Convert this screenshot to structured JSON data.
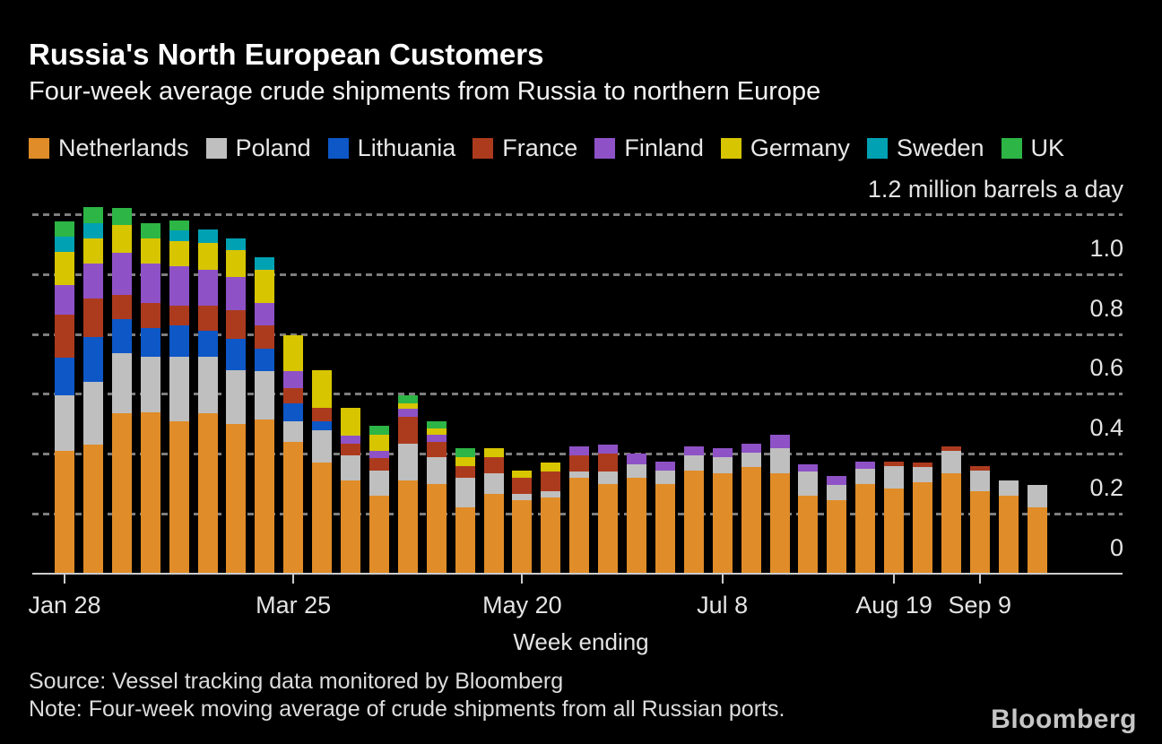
{
  "header": {
    "title": "Russia's North European Customers",
    "subtitle": "Four-week average crude shipments from Russia to northern Europe"
  },
  "axis": {
    "unit_label": "1.2 million barrels a day",
    "x_axis_title": "Week ending"
  },
  "chart_data": {
    "type": "bar",
    "stacked": true,
    "title": "Russia's North European Customers",
    "subtitle": "Four-week average crude shipments from Russia to northern Europe",
    "unit": "million barrels a day",
    "ylim": [
      0,
      1.2
    ],
    "grid_values": [
      1.2,
      1.0,
      0.8,
      0.6,
      0.4,
      0.2
    ],
    "y_ticks": [
      {
        "value": 1.0,
        "label": "1.0"
      },
      {
        "value": 0.8,
        "label": "0.8"
      },
      {
        "value": 0.6,
        "label": "0.6"
      },
      {
        "value": 0.4,
        "label": "0.4"
      },
      {
        "value": 0.2,
        "label": "0.2"
      },
      {
        "value": 0.0,
        "label": "0"
      }
    ],
    "n_bars": 35,
    "x_interval": "weekly",
    "x_ticks": [
      {
        "index": 0,
        "label": "Jan 28"
      },
      {
        "index": 8,
        "label": "Mar 25"
      },
      {
        "index": 16,
        "label": "May 20"
      },
      {
        "index": 23,
        "label": "Jul 8"
      },
      {
        "index": 29,
        "label": "Aug 19"
      },
      {
        "index": 32,
        "label": "Sep 9"
      }
    ],
    "series": [
      {
        "name": "Netherlands",
        "color": "#E08C28",
        "values": [
          0.41,
          0.43,
          0.535,
          0.54,
          0.51,
          0.535,
          0.5,
          0.515,
          0.44,
          0.37,
          0.31,
          0.26,
          0.31,
          0.3,
          0.22,
          0.265,
          0.245,
          0.255,
          0.32,
          0.3,
          0.32,
          0.3,
          0.345,
          0.335,
          0.355,
          0.335,
          0.26,
          0.245,
          0.3,
          0.285,
          0.305,
          0.335,
          0.275,
          0.26,
          0.22
        ]
      },
      {
        "name": "Poland",
        "color": "#BFBFBF",
        "values": [
          0.185,
          0.21,
          0.2,
          0.185,
          0.215,
          0.19,
          0.18,
          0.16,
          0.07,
          0.11,
          0.085,
          0.085,
          0.125,
          0.09,
          0.1,
          0.07,
          0.02,
          0.02,
          0.02,
          0.04,
          0.045,
          0.045,
          0.05,
          0.055,
          0.05,
          0.085,
          0.08,
          0.05,
          0.05,
          0.075,
          0.05,
          0.075,
          0.07,
          0.05,
          0.075
        ]
      },
      {
        "name": "Lithuania",
        "color": "#0D57C7",
        "values": [
          0.125,
          0.15,
          0.115,
          0.095,
          0.105,
          0.085,
          0.105,
          0.075,
          0.06,
          0.03,
          0,
          0,
          0,
          0,
          0,
          0,
          0,
          0,
          0,
          0,
          0,
          0,
          0,
          0,
          0,
          0,
          0,
          0,
          0,
          0,
          0,
          0,
          0,
          0,
          0
        ]
      },
      {
        "name": "France",
        "color": "#AC3B1E",
        "values": [
          0.145,
          0.13,
          0.08,
          0.085,
          0.065,
          0.085,
          0.095,
          0.08,
          0.05,
          0.045,
          0.04,
          0.04,
          0.09,
          0.05,
          0.04,
          0.055,
          0.055,
          0.065,
          0.055,
          0.06,
          0,
          0,
          0,
          0,
          0,
          0,
          0,
          0,
          0,
          0.015,
          0.015,
          0.015,
          0.015,
          0,
          0
        ]
      },
      {
        "name": "Finland",
        "color": "#8E52C6",
        "values": [
          0.1,
          0.115,
          0.14,
          0.13,
          0.13,
          0.12,
          0.11,
          0.075,
          0.055,
          0,
          0.025,
          0.025,
          0.025,
          0.025,
          0,
          0,
          0,
          0,
          0.03,
          0.03,
          0.035,
          0.03,
          0.03,
          0.03,
          0.03,
          0.045,
          0.025,
          0.03,
          0.025,
          0,
          0,
          0,
          0,
          0,
          0
        ]
      },
      {
        "name": "Germany",
        "color": "#D7C500",
        "values": [
          0.11,
          0.085,
          0.095,
          0.085,
          0.085,
          0.09,
          0.09,
          0.11,
          0.12,
          0.125,
          0.095,
          0.055,
          0.02,
          0.02,
          0.03,
          0.03,
          0.025,
          0.03,
          0,
          0,
          0,
          0,
          0,
          0,
          0,
          0,
          0,
          0,
          0,
          0,
          0,
          0,
          0,
          0,
          0
        ]
      },
      {
        "name": "Sweden",
        "color": "#00A1B3",
        "values": [
          0.05,
          0.05,
          0,
          0,
          0.035,
          0.045,
          0.04,
          0.04,
          0,
          0,
          0,
          0,
          0,
          0,
          0,
          0,
          0,
          0,
          0,
          0,
          0,
          0,
          0,
          0,
          0,
          0,
          0,
          0,
          0,
          0,
          0,
          0,
          0,
          0,
          0
        ]
      },
      {
        "name": "UK",
        "color": "#2DB546",
        "values": [
          0.05,
          0.055,
          0.055,
          0.05,
          0.035,
          0,
          0,
          0,
          0,
          0,
          0,
          0.03,
          0.025,
          0.025,
          0.03,
          0,
          0,
          0,
          0,
          0,
          0,
          0,
          0,
          0,
          0,
          0,
          0,
          0,
          0,
          0,
          0,
          0,
          0,
          0,
          0
        ]
      }
    ]
  },
  "footer": {
    "source": "Source: Vessel tracking data monitored by Bloomberg",
    "note": "Note: Four-week moving average of crude shipments from all Russian ports.",
    "logo": "Bloomberg"
  }
}
